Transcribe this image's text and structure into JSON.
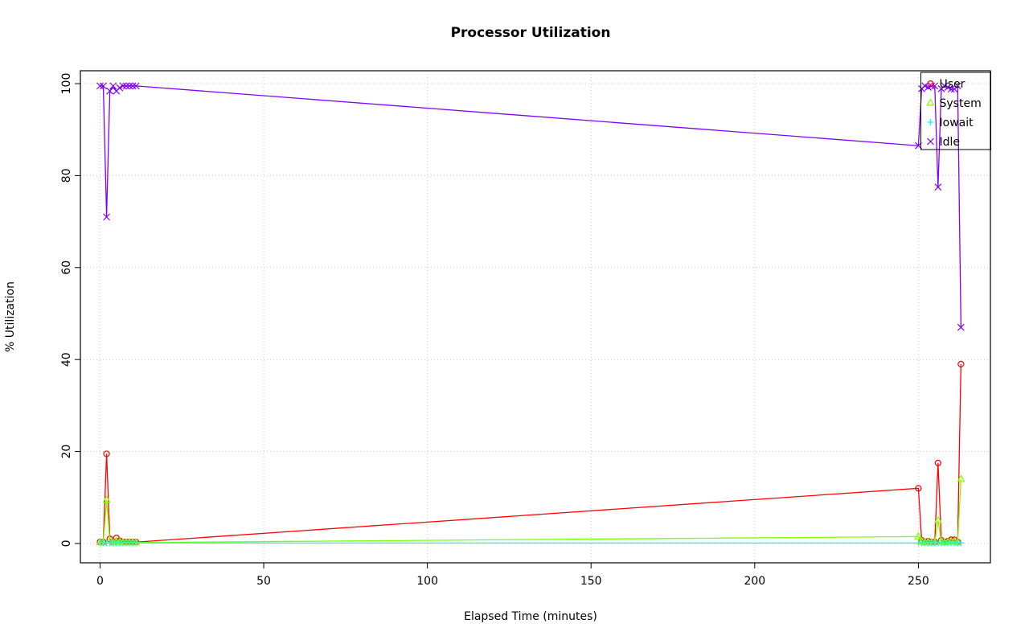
{
  "chart_data": {
    "type": "line",
    "title": "Processor Utilization",
    "xlabel": "Elapsed Time (minutes)",
    "ylabel": "% Utilization",
    "xlim": [
      -6,
      272
    ],
    "ylim": [
      -4.2,
      102.8
    ],
    "xticks": [
      0,
      50,
      100,
      150,
      200,
      250
    ],
    "yticks": [
      0,
      20,
      40,
      60,
      80,
      100
    ],
    "grid": true,
    "grid_style": "dotted",
    "grid_color": "#c8c8c8",
    "legend_position": "top-right",
    "legend_labels": [
      "User",
      "System",
      "Iowait",
      "Idle"
    ],
    "x": [
      0,
      1,
      2,
      3,
      4,
      5,
      6,
      7,
      8,
      9,
      10,
      11,
      250,
      251,
      252,
      253,
      254,
      255,
      256,
      257,
      258,
      259,
      260,
      261,
      262,
      263
    ],
    "series": [
      {
        "name": "User",
        "color": "#FF0000",
        "marker": "circle",
        "values": [
          0.3,
          0.3,
          19.5,
          1,
          0.3,
          1.2,
          0.6,
          0.3,
          0.3,
          0.3,
          0.3,
          0.3,
          12,
          0.7,
          0.3,
          0.5,
          0.3,
          0.3,
          17.5,
          0.7,
          0.3,
          0.5,
          0.8,
          0.8,
          0.3,
          39
        ]
      },
      {
        "name": "System",
        "color": "#80FF00",
        "marker": "triangle",
        "values": [
          0.2,
          0.2,
          9.5,
          0.6,
          0.2,
          0.4,
          0.3,
          0.2,
          0.2,
          0.2,
          0.2,
          0.2,
          1.5,
          0.4,
          0.2,
          0.3,
          0.2,
          0.2,
          5,
          0.4,
          0.2,
          0.3,
          0.4,
          0.4,
          0.2,
          14
        ]
      },
      {
        "name": "Iowait",
        "color": "#00FFFF",
        "marker": "plus",
        "values": [
          0.1,
          0.1,
          0.1,
          0.1,
          0.1,
          0.1,
          0.1,
          0.1,
          0.1,
          0.1,
          0.1,
          0.1,
          0.1,
          0.1,
          0.1,
          0.1,
          0.1,
          0.1,
          0.1,
          0.1,
          0.1,
          0.1,
          0.1,
          0.1,
          0.1,
          0.1
        ]
      },
      {
        "name": "Idle",
        "color": "#8000FF",
        "marker": "x",
        "values": [
          99.5,
          99.5,
          71,
          98.4,
          99.5,
          98.4,
          99.1,
          99.5,
          99.5,
          99.5,
          99.5,
          99.5,
          86.5,
          98.9,
          99.5,
          99.2,
          99.5,
          99.5,
          77.5,
          98.9,
          99.5,
          99.2,
          98.8,
          98.8,
          99.5,
          47
        ]
      }
    ]
  }
}
